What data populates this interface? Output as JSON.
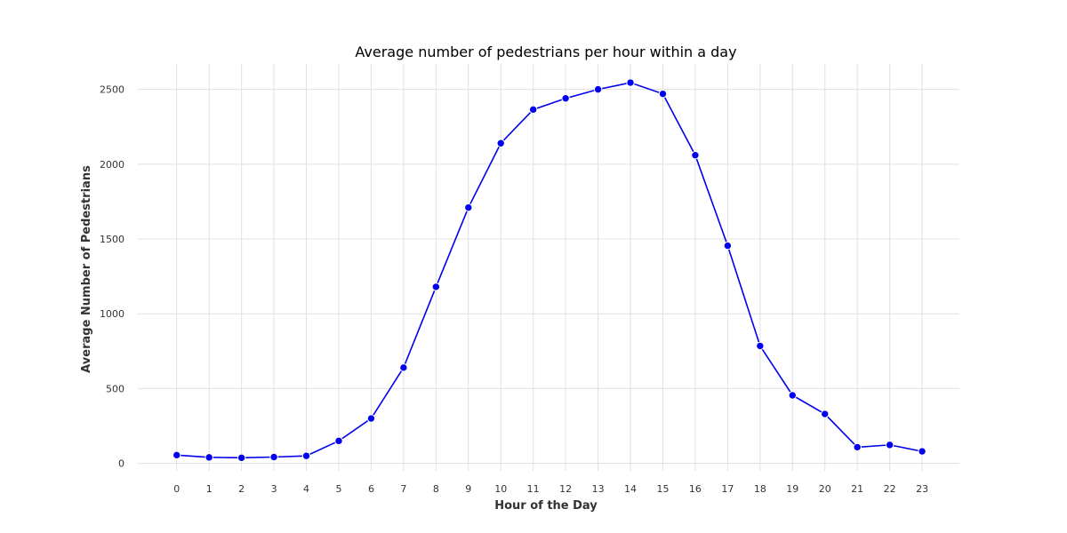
{
  "chart_data": {
    "type": "line",
    "title": "Average number of pedestrians per hour within a day",
    "xlabel": "Hour of the Day",
    "ylabel": "Average Number of Pedestrians",
    "x": [
      0,
      1,
      2,
      3,
      4,
      5,
      6,
      7,
      8,
      9,
      10,
      11,
      12,
      13,
      14,
      15,
      16,
      17,
      18,
      19,
      20,
      21,
      22,
      23
    ],
    "x_tick_labels": [
      "0",
      "1",
      "2",
      "3",
      "4",
      "5",
      "6",
      "7",
      "8",
      "9",
      "10",
      "11",
      "12",
      "13",
      "14",
      "15",
      "16",
      "17",
      "18",
      "19",
      "20",
      "21",
      "22",
      "23"
    ],
    "series": [
      {
        "values": [
          55,
          40,
          37,
          42,
          50,
          150,
          300,
          640,
          1180,
          1710,
          2140,
          2365,
          2440,
          2500,
          2545,
          2470,
          2060,
          1455,
          785,
          455,
          330,
          108,
          123,
          80
        ],
        "color": "#0000ee"
      }
    ],
    "y_ticks": [
      0,
      500,
      1000,
      1500,
      2000,
      2500
    ],
    "y_tick_labels": [
      "0",
      "500",
      "1000",
      "1500",
      "2000",
      "2500"
    ],
    "xlim": [
      -1.2,
      24.15
    ],
    "ylim": [
      -50,
      2670
    ],
    "grid": true,
    "colors": {
      "grid": "#e0e0e0",
      "text": "#333333",
      "marker_edge": "#ffffff"
    }
  }
}
